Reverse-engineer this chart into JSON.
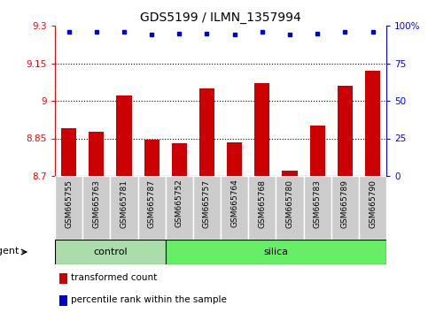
{
  "title": "GDS5199 / ILMN_1357994",
  "samples": [
    "GSM665755",
    "GSM665763",
    "GSM665781",
    "GSM665787",
    "GSM665752",
    "GSM665757",
    "GSM665764",
    "GSM665768",
    "GSM665780",
    "GSM665783",
    "GSM665789",
    "GSM665790"
  ],
  "bar_values": [
    8.89,
    8.875,
    9.02,
    8.845,
    8.83,
    9.05,
    8.835,
    9.07,
    8.72,
    8.9,
    9.06,
    9.12
  ],
  "percentile_values": [
    96,
    96,
    96,
    94,
    95,
    95,
    94,
    96,
    94,
    95,
    96,
    96
  ],
  "bar_color": "#cc0000",
  "dot_color": "#0000cc",
  "ylim": [
    8.7,
    9.3
  ],
  "y2lim": [
    0,
    100
  ],
  "yticks": [
    8.7,
    8.85,
    9.0,
    9.15,
    9.3
  ],
  "ytick_labels": [
    "8.7",
    "8.85",
    "9",
    "9.15",
    "9.3"
  ],
  "y2ticks": [
    0,
    25,
    50,
    75,
    100
  ],
  "y2tick_labels": [
    "0",
    "25",
    "50",
    "75",
    "100%"
  ],
  "hlines": [
    8.85,
    9.0,
    9.15
  ],
  "n_control": 4,
  "n_silica": 8,
  "control_label": "control",
  "silica_label": "silica",
  "agent_label": "agent",
  "legend_red_label": "transformed count",
  "legend_blue_label": "percentile rank within the sample",
  "bar_color_gray": "#bbbbbb",
  "control_green": "#aaeebb",
  "silica_green": "#66ee66",
  "bar_width": 0.55,
  "title_fontsize": 10,
  "tick_fontsize": 7.5,
  "label_fontsize": 8
}
